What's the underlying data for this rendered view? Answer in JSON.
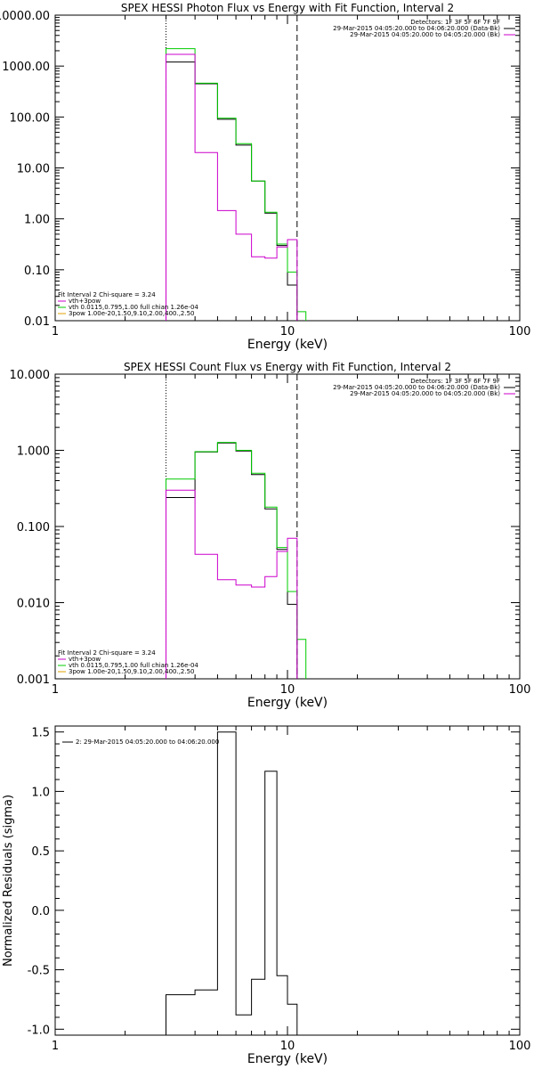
{
  "chart_data": [
    {
      "type": "line",
      "subtype": "step-histogram",
      "title": "SPEX HESSI Photon Flux vs Energy with Fit Function, Interval 2",
      "xlabel": "Energy (keV)",
      "ylabel": "",
      "xscale": "log",
      "yscale": "log",
      "xlim": [
        1,
        100
      ],
      "ylim": [
        0.01,
        10000
      ],
      "x_ticks": [
        1,
        10,
        100
      ],
      "x_tick_labels": [
        "1",
        "10",
        "100"
      ],
      "y_ticks": [
        0.01,
        0.1,
        1,
        10,
        100,
        1000,
        10000
      ],
      "y_tick_labels": [
        "0.01",
        "0.10",
        "1.00",
        "10.00",
        "100.00",
        "1000.00",
        "10000.00"
      ],
      "bin_edges": [
        3,
        4,
        5,
        6,
        7,
        8,
        9,
        10,
        11,
        12
      ],
      "vlines": [
        {
          "x": 3,
          "style": "dotted"
        },
        {
          "x": 11,
          "style": "dashed"
        }
      ],
      "legend_topright": {
        "position": "top-right",
        "lines": [
          "Detectors: 1F 3F 5F 6F 7F 9F",
          "29-Mar-2015 04:05:20.000 to 04:06:20.000 (Data-Bk)",
          "29-Mar-2015 04:05:20.000 to 04:05:20.000 (Bk)"
        ],
        "colors": [
          "#000000",
          "#000000",
          "#cc00cc"
        ]
      },
      "legend_bottomleft": {
        "position": "bottom-left",
        "lines": [
          "Fit Interval 2   Chi-square = 3.24",
          "vth+3pow",
          "vth 0.0115,0.795,1.00  full chian 1.26e-04",
          "3pow 1.00e-20,1.50,9.10,2.00,400.,2.50"
        ],
        "colors": [
          "#000000",
          "#cc00cc",
          "#00cc00",
          "#e0a000"
        ]
      },
      "series": [
        {
          "color": "#000000",
          "values": [
            1200,
            450,
            90,
            28,
            5.5,
            1.3,
            0.3,
            0.05,
            null
          ]
        },
        {
          "color": "#00cc00",
          "values": [
            2200,
            460,
            95,
            30,
            5.5,
            1.35,
            0.32,
            0.09,
            0.015
          ]
        },
        {
          "color": "#cc00cc",
          "values": [
            1700,
            20,
            1.45,
            0.5,
            0.18,
            0.17,
            0.28,
            0.39,
            null
          ]
        }
      ]
    },
    {
      "type": "line",
      "subtype": "step-histogram",
      "title": "SPEX HESSI Count Flux vs Energy with Fit Function, Interval 2",
      "xlabel": "Energy (keV)",
      "ylabel": "",
      "xscale": "log",
      "yscale": "log",
      "xlim": [
        1,
        100
      ],
      "ylim": [
        0.001,
        10
      ],
      "x_ticks": [
        1,
        10,
        100
      ],
      "x_tick_labels": [
        "1",
        "10",
        "100"
      ],
      "y_ticks": [
        0.001,
        0.01,
        0.1,
        1,
        10
      ],
      "y_tick_labels": [
        "0.001",
        "0.010",
        "0.100",
        "1.000",
        "10.000"
      ],
      "bin_edges": [
        3,
        4,
        5,
        6,
        7,
        8,
        9,
        10,
        11,
        12
      ],
      "vlines": [
        {
          "x": 3,
          "style": "dotted"
        },
        {
          "x": 11,
          "style": "dashed"
        }
      ],
      "legend_topright": {
        "position": "top-right",
        "lines": [
          "Detectors: 1F 3F 5F 6F 7F 9F",
          "29-Mar-2015 04:05:20.000 to 04:06:20.000 (Data-Bk)",
          "29-Mar-2015 04:05:20.000 to 04:05:20.000 (Bk)"
        ],
        "colors": [
          "#000000",
          "#000000",
          "#cc00cc"
        ]
      },
      "legend_bottomleft": {
        "position": "bottom-left",
        "lines": [
          "Fit Interval 2   Chi-square = 3.24",
          "vth+3pow",
          "vth 0.0115,0.795,1.00  full chian 1.26e-04",
          "3pow 1.00e-20,1.50,9.10,2.00,400.,2.50"
        ],
        "colors": [
          "#000000",
          "#cc00cc",
          "#00cc00",
          "#e0a000"
        ]
      },
      "series": [
        {
          "color": "#000000",
          "values": [
            0.24,
            0.95,
            1.25,
            0.98,
            0.48,
            0.17,
            0.05,
            0.0095,
            null
          ]
        },
        {
          "color": "#00cc00",
          "values": [
            0.42,
            0.96,
            1.27,
            1.0,
            0.5,
            0.18,
            0.053,
            0.014,
            0.0033
          ]
        },
        {
          "color": "#cc00cc",
          "values": [
            0.3,
            0.043,
            0.02,
            0.017,
            0.016,
            0.022,
            0.047,
            0.07,
            null
          ]
        }
      ]
    },
    {
      "type": "line",
      "subtype": "step-histogram",
      "title": "",
      "xlabel": "Energy (keV)",
      "ylabel": "Normalized Residuals (sigma)",
      "xscale": "log",
      "yscale": "linear",
      "xlim": [
        1,
        100
      ],
      "ylim": [
        -1.05,
        1.55
      ],
      "x_ticks": [
        1,
        10,
        100
      ],
      "x_tick_labels": [
        "1",
        "10",
        "100"
      ],
      "y_ticks": [
        -1.0,
        -0.5,
        0.0,
        0.5,
        1.0,
        1.5
      ],
      "y_tick_labels": [
        "-1.0",
        "-0.5",
        "0.0",
        "0.5",
        "1.0",
        "1.5"
      ],
      "bin_edges": [
        3,
        4,
        5,
        6,
        7,
        8,
        9,
        10,
        11
      ],
      "legend_topleft": {
        "position": "top-left",
        "lines": [
          "2: 29-Mar-2015 04:05:20.000 to 04:06:20.000"
        ],
        "colors": [
          "#000000"
        ]
      },
      "series": [
        {
          "color": "#000000",
          "values": [
            -0.71,
            -0.67,
            1.5,
            -0.88,
            -0.58,
            1.17,
            -0.55,
            -0.79
          ]
        }
      ]
    }
  ]
}
